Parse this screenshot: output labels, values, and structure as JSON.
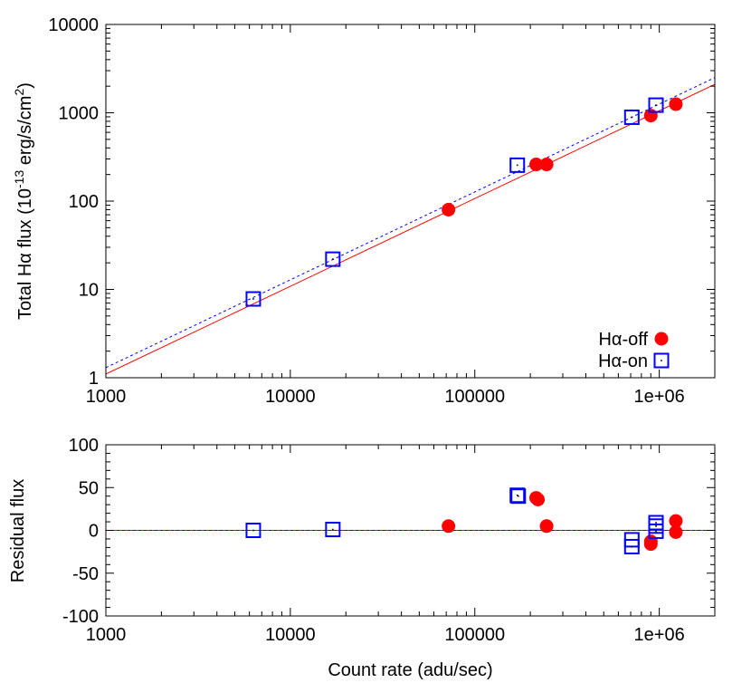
{
  "chart_data": [
    {
      "type": "scatter",
      "xscale": "log",
      "yscale": "log",
      "xlim": [
        1000,
        2000000
      ],
      "ylim": [
        1,
        10000
      ],
      "xticks": [
        1000,
        10000,
        100000,
        1000000
      ],
      "xtick_labels": [
        "1000",
        "10000",
        "100000",
        "1e+06"
      ],
      "yticks": [
        1,
        10,
        100,
        1000,
        10000
      ],
      "ytick_labels": [
        "1",
        "10",
        "100",
        "1000",
        "10000"
      ],
      "ylabel": {
        "pre": "Total H",
        "alpha": "α",
        "mid": " flux (10",
        "exp": "-13",
        "unit": " erg/s/cm",
        "exp2": "2",
        "post": ")"
      },
      "legend_position": "bottom-right",
      "series": [
        {
          "name": "Hα-off",
          "color": "#ff0000",
          "marker": "filled-circle",
          "x": [
            72000,
            215000,
            245000,
            900000,
            1230000
          ],
          "y": [
            80,
            260,
            260,
            930,
            1250
          ]
        },
        {
          "name": "Hα-on",
          "color": "#0000ff",
          "marker": "open-square",
          "x": [
            6300,
            17000,
            170000,
            710000,
            960000
          ],
          "y": [
            7.8,
            22,
            255,
            890,
            1220
          ]
        }
      ],
      "fits": [
        {
          "color": "#ff0000",
          "dash": "solid",
          "x": [
            1000,
            2000000
          ],
          "y": [
            1.1,
            2100
          ]
        },
        {
          "color": "#0000ff",
          "dash": "dotted",
          "x": [
            1000,
            2000000
          ],
          "y": [
            1.3,
            2500
          ]
        }
      ]
    },
    {
      "type": "scatter",
      "xscale": "log",
      "xlim": [
        1000,
        2000000
      ],
      "ylim": [
        -100,
        100
      ],
      "xticks": [
        1000,
        10000,
        100000,
        1000000
      ],
      "xtick_labels": [
        "1000",
        "10000",
        "100000",
        "1e+06"
      ],
      "yticks": [
        -100,
        -50,
        0,
        50,
        100
      ],
      "ytick_labels": [
        "-100",
        "-50",
        "0",
        "50",
        "100"
      ],
      "xlabel": "Count rate (adu/sec)",
      "ylabel": "Residual flux",
      "zero_line": true,
      "series": [
        {
          "name": "Hα-off",
          "color": "#ff0000",
          "marker": "filled-circle",
          "x": [
            72000,
            215000,
            220000,
            245000,
            900000,
            900000,
            1230000,
            1230000
          ],
          "y": [
            5,
            38,
            36,
            5,
            -13,
            -16,
            11,
            -2
          ]
        },
        {
          "name": "Hα-on",
          "color": "#0000ff",
          "marker": "open-square",
          "x": [
            6300,
            17000,
            170000,
            172000,
            710000,
            710000,
            960000,
            960000,
            960000
          ],
          "y": [
            0,
            1,
            41,
            40,
            -11,
            -19,
            9,
            5,
            -1
          ]
        }
      ]
    }
  ]
}
